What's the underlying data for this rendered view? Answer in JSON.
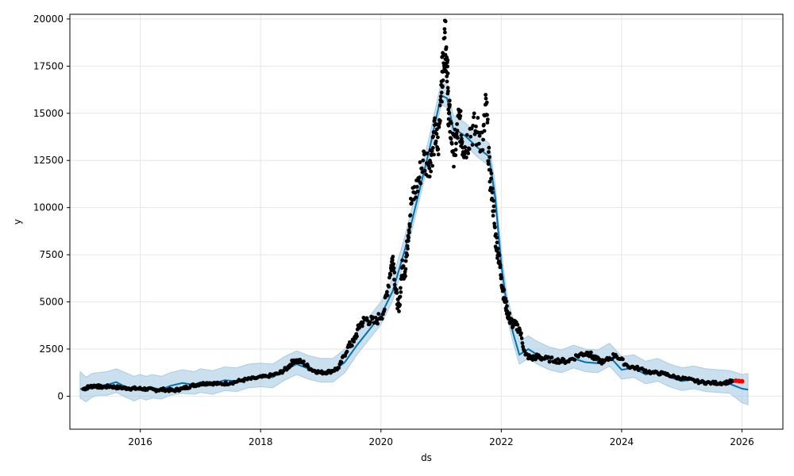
{
  "chart_data": {
    "type": "line",
    "title": "",
    "xlabel": "ds",
    "ylabel": "y",
    "xlim": [
      2014.83,
      2026.68
    ],
    "ylim": [
      -1750,
      20250
    ],
    "grid": true,
    "x_ticks": [
      {
        "value": 2016,
        "label": "2016"
      },
      {
        "value": 2018,
        "label": "2018"
      },
      {
        "value": 2020,
        "label": "2020"
      },
      {
        "value": 2022,
        "label": "2022"
      },
      {
        "value": 2024,
        "label": "2024"
      },
      {
        "value": 2026,
        "label": "2026"
      }
    ],
    "y_ticks": [
      {
        "value": 0,
        "label": "0"
      },
      {
        "value": 2500,
        "label": "2500"
      },
      {
        "value": 5000,
        "label": "5000"
      },
      {
        "value": 7500,
        "label": "7500"
      },
      {
        "value": 10000,
        "label": "10000"
      },
      {
        "value": 12500,
        "label": "12500"
      },
      {
        "value": 15000,
        "label": "15000"
      },
      {
        "value": 17500,
        "label": "17500"
      },
      {
        "value": 20000,
        "label": "20000"
      }
    ],
    "colors": {
      "forecast_line": "#0072B2",
      "uncertainty_band": "#a9cce3",
      "observed": "#000000",
      "highlight": "#ff0000",
      "grid": "#e6e6e6"
    },
    "series": [
      {
        "kind": "forecast",
        "x": [
          2015.0,
          2015.1,
          2015.2,
          2015.3,
          2015.45,
          2015.6,
          2015.75,
          2015.9,
          2016.0,
          2016.1,
          2016.2,
          2016.35,
          2016.5,
          2016.7,
          2016.9,
          2017.0,
          2017.2,
          2017.4,
          2017.6,
          2017.8,
          2018.0,
          2018.2,
          2018.4,
          2018.6,
          2018.8,
          2019.0,
          2019.2,
          2019.4,
          2019.6,
          2019.8,
          2020.0,
          2020.2,
          2020.4,
          2020.6,
          2020.8,
          2021.0,
          2021.1,
          2021.2,
          2021.4,
          2021.6,
          2021.8,
          2021.9,
          2022.0,
          2022.1,
          2022.2,
          2022.3,
          2022.45,
          2022.6,
          2022.8,
          2023.0,
          2023.2,
          2023.4,
          2023.6,
          2023.8,
          2024.0,
          2024.2,
          2024.4,
          2024.6,
          2024.8,
          2025.0,
          2025.2,
          2025.4,
          2025.6,
          2025.8,
          2026.0,
          2026.1
        ],
        "yhat": [
          400,
          300,
          500,
          550,
          600,
          750,
          500,
          350,
          450,
          300,
          450,
          350,
          550,
          700,
          600,
          750,
          650,
          850,
          800,
          1000,
          1050,
          1000,
          1400,
          1700,
          1450,
          1300,
          1300,
          1800,
          2700,
          3500,
          4300,
          5600,
          7800,
          10400,
          13000,
          15950,
          15800,
          14200,
          13800,
          13200,
          12700,
          10500,
          7000,
          4600,
          3300,
          2200,
          2500,
          2200,
          1900,
          1750,
          2000,
          1800,
          1750,
          2100,
          1400,
          1500,
          1150,
          1300,
          1000,
          800,
          900,
          750,
          700,
          650,
          400,
          350
        ],
        "yhat_lower": [
          -100,
          -300,
          -50,
          50,
          50,
          200,
          -50,
          -250,
          -100,
          -200,
          -100,
          -150,
          50,
          150,
          100,
          200,
          100,
          300,
          250,
          450,
          500,
          450,
          850,
          1150,
          900,
          750,
          750,
          1250,
          2200,
          3000,
          3800,
          5100,
          7300,
          9900,
          12500,
          15450,
          15300,
          13700,
          13300,
          12700,
          12200,
          10000,
          6500,
          4100,
          2800,
          1700,
          2000,
          1700,
          1400,
          1250,
          1500,
          1300,
          1250,
          1600,
          900,
          1000,
          650,
          800,
          500,
          300,
          400,
          250,
          200,
          150,
          -350,
          -450
        ],
        "yhat_upper": [
          1300,
          1000,
          1200,
          1250,
          1300,
          1450,
          1250,
          1050,
          1150,
          1050,
          1150,
          1050,
          1250,
          1400,
          1300,
          1450,
          1350,
          1550,
          1500,
          1700,
          1750,
          1700,
          2100,
          2400,
          2150,
          2000,
          2000,
          2500,
          3400,
          4200,
          5000,
          6300,
          8500,
          11100,
          13700,
          16650,
          16500,
          14900,
          14500,
          13900,
          13400,
          11200,
          7700,
          5300,
          4000,
          2900,
          3200,
          2900,
          2600,
          2450,
          2700,
          2500,
          2450,
          2800,
          2100,
          2200,
          1850,
          2000,
          1700,
          1500,
          1600,
          1450,
          1400,
          1350,
          1150,
          1200
        ]
      },
      {
        "kind": "observed",
        "x": [
          2015.05,
          2015.15,
          2015.25,
          2015.35,
          2015.5,
          2015.65,
          2015.8,
          2015.95,
          2016.1,
          2016.25,
          2016.4,
          2016.55,
          2016.7,
          2016.85,
          2017.0,
          2017.15,
          2017.3,
          2017.5,
          2017.7,
          2017.9,
          2018.1,
          2018.3,
          2018.45,
          2018.55,
          2018.7,
          2018.85,
          2019.0,
          2019.15,
          2019.3,
          2019.45,
          2019.55,
          2019.65,
          2019.75,
          2019.9,
          2020.05,
          2020.15,
          2020.2,
          2020.25,
          2020.3,
          2020.35,
          2020.4,
          2020.45,
          2020.5,
          2020.6,
          2020.7,
          2020.8,
          2020.85,
          2020.9,
          2020.95,
          2021.0,
          2021.03,
          2021.06,
          2021.08,
          2021.1,
          2021.12,
          2021.15,
          2021.2,
          2021.25,
          2021.3,
          2021.35,
          2021.4,
          2021.5,
          2021.6,
          2021.7,
          2021.75,
          2021.8,
          2021.85,
          2021.9,
          2021.95,
          2022.0,
          2022.05,
          2022.1,
          2022.15,
          2022.2,
          2022.3,
          2022.4,
          2022.5,
          2022.6,
          2022.7,
          2022.9,
          2023.1,
          2023.3,
          2023.45,
          2023.55,
          2023.7,
          2023.9,
          2024.1,
          2024.3,
          2024.5,
          2024.7,
          2024.9,
          2025.1,
          2025.3,
          2025.5,
          2025.7,
          2025.85
        ],
        "y": [
          380,
          500,
          550,
          480,
          520,
          450,
          420,
          400,
          380,
          330,
          350,
          300,
          400,
          550,
          650,
          700,
          650,
          700,
          850,
          950,
          1050,
          1200,
          1500,
          1900,
          1800,
          1400,
          1250,
          1300,
          1500,
          2600,
          2900,
          3800,
          4100,
          3900,
          4500,
          6500,
          7400,
          5500,
          4500,
          6800,
          6600,
          8500,
          10200,
          11100,
          12500,
          12400,
          13000,
          14000,
          13100,
          16500,
          17200,
          19000,
          18400,
          17800,
          15200,
          14500,
          13000,
          13400,
          14800,
          13500,
          13200,
          14200,
          14000,
          13600,
          15500,
          12000,
          10800,
          8500,
          7600,
          6300,
          5200,
          4500,
          4000,
          3800,
          3600,
          2200,
          2000,
          2100,
          2000,
          1900,
          1850,
          2200,
          2300,
          2000,
          1800,
          2200,
          1600,
          1450,
          1250,
          1200,
          1000,
          900,
          750,
          700,
          700,
          800
        ],
        "sizes_note": "dense daily observations"
      },
      {
        "kind": "highlight",
        "x": [
          2025.9,
          2025.95,
          2026.0
        ],
        "y": [
          820,
          800,
          790
        ]
      }
    ]
  }
}
